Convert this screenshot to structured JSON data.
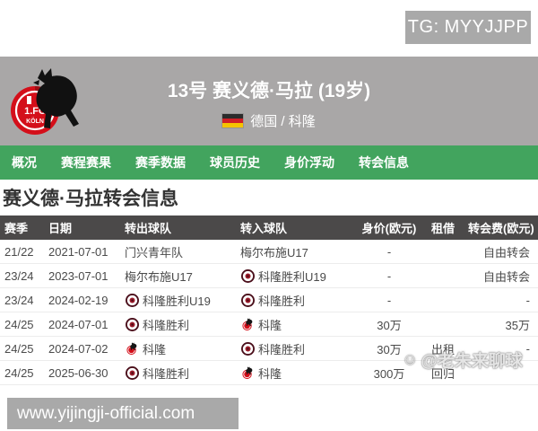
{
  "overlay": {
    "tg_badge": "TG: MYYJJPP",
    "watermark": "@老朱来聊球",
    "site_url": "www.yijingji-official.com"
  },
  "header": {
    "title": "13号 赛义德·马拉 (19岁)",
    "nationality": "德国 / 科隆"
  },
  "nav": {
    "items": [
      "概况",
      "赛程赛果",
      "赛季数据",
      "球员历史",
      "身价浮动",
      "转会信息"
    ]
  },
  "section": {
    "title": "赛义德·马拉转会信息"
  },
  "table": {
    "headers": [
      "赛季",
      "日期",
      "转出球队",
      "转入球队",
      "身价(欧元)",
      "租借",
      "转会费(欧元)"
    ],
    "rows": [
      {
        "season": "21/22",
        "date": "2021-07-01",
        "from": {
          "name": "门兴青年队",
          "logo": ""
        },
        "to": {
          "name": "梅尔布施U17",
          "logo": ""
        },
        "value": "-",
        "loan": "",
        "fee": "自由转会"
      },
      {
        "season": "23/24",
        "date": "2023-07-01",
        "from": {
          "name": "梅尔布施U17",
          "logo": ""
        },
        "to": {
          "name": "科隆胜利U19",
          "logo": "viktoria"
        },
        "value": "-",
        "loan": "",
        "fee": "自由转会"
      },
      {
        "season": "23/24",
        "date": "2024-02-19",
        "from": {
          "name": "科隆胜利U19",
          "logo": "viktoria"
        },
        "to": {
          "name": "科隆胜利",
          "logo": "viktoria"
        },
        "value": "-",
        "loan": "",
        "fee": "-"
      },
      {
        "season": "24/25",
        "date": "2024-07-01",
        "from": {
          "name": "科隆胜利",
          "logo": "viktoria"
        },
        "to": {
          "name": "科隆",
          "logo": "koeln"
        },
        "value": "30万",
        "loan": "",
        "fee": "35万"
      },
      {
        "season": "24/25",
        "date": "2024-07-02",
        "from": {
          "name": "科隆",
          "logo": "koeln"
        },
        "to": {
          "name": "科隆胜利",
          "logo": "viktoria"
        },
        "value": "30万",
        "loan": "出租",
        "fee": "-"
      },
      {
        "season": "24/25",
        "date": "2025-06-30",
        "from": {
          "name": "科隆胜利",
          "logo": "viktoria"
        },
        "to": {
          "name": "科隆",
          "logo": "koeln"
        },
        "value": "300万",
        "loan": "回归",
        "fee": ""
      }
    ]
  },
  "colors": {
    "band_gray": "#a9a7a7",
    "accent_green": "#42a45e",
    "table_header_dark": "#4b4949",
    "koeln_red": "#d40f1a",
    "viktoria_maroon": "#4a0e1a"
  }
}
